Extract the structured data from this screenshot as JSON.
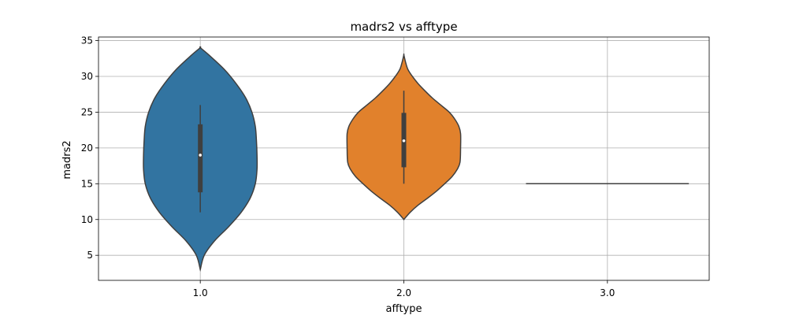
{
  "chart_data": {
    "type": "violin",
    "title": "madrs2 vs afftype",
    "xlabel": "afftype",
    "ylabel": "madrs2",
    "categories": [
      "1.0",
      "2.0",
      "3.0"
    ],
    "yticks": [
      "5",
      "10",
      "15",
      "20",
      "25",
      "30",
      "35"
    ],
    "ylim": [
      1.5,
      35.5
    ],
    "grid": true,
    "colors": [
      "#3274a1",
      "#e1812c",
      "#3a923a"
    ],
    "violins": [
      {
        "category": "1.0",
        "min": 3,
        "max": 34,
        "q1": 13.8,
        "median": 19,
        "q3": 23.3,
        "whisker_low": 11,
        "whisker_high": 26,
        "density_profile": [
          [
            3,
            0.0
          ],
          [
            5,
            0.07
          ],
          [
            7,
            0.25
          ],
          [
            9,
            0.5
          ],
          [
            11,
            0.72
          ],
          [
            13,
            0.88
          ],
          [
            15,
            0.97
          ],
          [
            17,
            1.0
          ],
          [
            19,
            1.0
          ],
          [
            21,
            0.99
          ],
          [
            23,
            0.97
          ],
          [
            25,
            0.91
          ],
          [
            27,
            0.8
          ],
          [
            29,
            0.63
          ],
          [
            31,
            0.42
          ],
          [
            33,
            0.15
          ],
          [
            34,
            0.0
          ]
        ]
      },
      {
        "category": "2.0",
        "min": 10,
        "max": 33,
        "q1": 17.3,
        "median": 21,
        "q3": 24.9,
        "whisker_low": 15,
        "whisker_high": 28,
        "density_profile": [
          [
            10,
            0.0
          ],
          [
            11,
            0.11
          ],
          [
            12,
            0.25
          ],
          [
            13,
            0.42
          ],
          [
            14,
            0.58
          ],
          [
            15,
            0.72
          ],
          [
            16,
            0.85
          ],
          [
            17,
            0.94
          ],
          [
            18,
            0.99
          ],
          [
            20,
            1.0
          ],
          [
            22,
            1.0
          ],
          [
            23,
            0.97
          ],
          [
            24,
            0.9
          ],
          [
            25,
            0.8
          ],
          [
            26,
            0.65
          ],
          [
            27,
            0.5
          ],
          [
            28,
            0.37
          ],
          [
            29,
            0.25
          ],
          [
            30,
            0.15
          ],
          [
            31,
            0.07
          ],
          [
            32,
            0.03
          ],
          [
            33,
            0.0
          ]
        ]
      },
      {
        "category": "3.0",
        "single_value": 15
      }
    ]
  }
}
